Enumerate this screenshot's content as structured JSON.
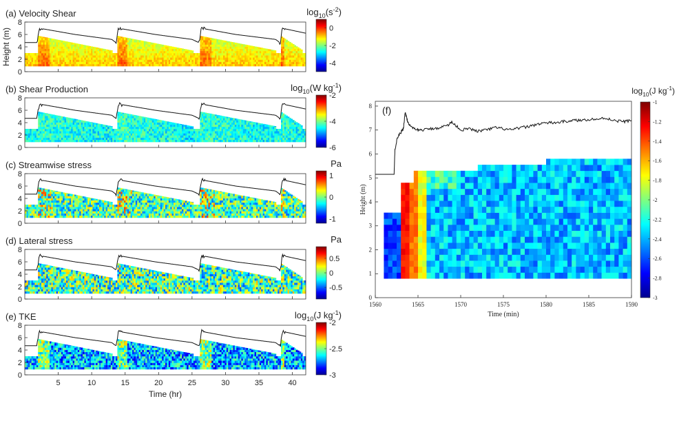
{
  "chart_data": [
    {
      "type": "heatmap",
      "panel_label": "(a) Velocity Shear",
      "colorbar_title_base": "log",
      "colorbar_title_sub": "10",
      "colorbar_title_rest": "(s",
      "colorbar_title_sup": "-2",
      "colorbar_title_end": ")",
      "colorbar_ticks": [
        0,
        -2,
        -4
      ],
      "clim": [
        -5,
        1
      ],
      "ylabel": "Height (m)",
      "yticks": [
        0,
        2,
        4,
        6,
        8
      ],
      "ylim": [
        0,
        8
      ],
      "xlim": [
        0,
        42
      ],
      "xticks": [
        5,
        10,
        15,
        20,
        25,
        30,
        35,
        40
      ],
      "show_xticklabels": false,
      "texture": "shear"
    },
    {
      "type": "heatmap",
      "panel_label": "(b) Shear Production",
      "colorbar_title_base": "log",
      "colorbar_title_sub": "10",
      "colorbar_title_rest": "(W kg",
      "colorbar_title_sup": "-1",
      "colorbar_title_end": ")",
      "colorbar_ticks": [
        -2,
        -4,
        -6
      ],
      "clim": [
        -6,
        -2
      ],
      "yticks": [
        0,
        2,
        4,
        6,
        8
      ],
      "ylim": [
        0,
        8
      ],
      "xlim": [
        0,
        42
      ],
      "xticks": [
        5,
        10,
        15,
        20,
        25,
        30,
        35,
        40
      ],
      "show_xticklabels": false,
      "texture": "production"
    },
    {
      "type": "heatmap",
      "panel_label": "(c) Streamwise stress",
      "colorbar_title_base": "Pa",
      "colorbar_ticks": [
        1,
        0,
        -1
      ],
      "clim": [
        -1.2,
        1.2
      ],
      "yticks": [
        0,
        2,
        4,
        6,
        8
      ],
      "ylim": [
        0,
        8
      ],
      "xlim": [
        0,
        42
      ],
      "xticks": [
        5,
        10,
        15,
        20,
        25,
        30,
        35,
        40
      ],
      "show_xticklabels": false,
      "texture": "streamwise"
    },
    {
      "type": "heatmap",
      "panel_label": "(d) Lateral stress",
      "colorbar_title_base": "Pa",
      "colorbar_ticks": [
        0.5,
        0,
        -0.5
      ],
      "clim": [
        -0.9,
        0.9
      ],
      "yticks": [
        0,
        2,
        4,
        6,
        8
      ],
      "ylim": [
        0,
        8
      ],
      "xlim": [
        0,
        42
      ],
      "xticks": [
        5,
        10,
        15,
        20,
        25,
        30,
        35,
        40
      ],
      "show_xticklabels": false,
      "texture": "lateral"
    },
    {
      "type": "heatmap",
      "panel_label": "(e) TKE",
      "colorbar_title_base": "log",
      "colorbar_title_sub": "10",
      "colorbar_title_rest": "(J kg",
      "colorbar_title_sup": "-1",
      "colorbar_title_end": ")",
      "colorbar_ticks": [
        -2,
        -2.5,
        -3
      ],
      "clim": [
        -3,
        -2
      ],
      "yticks": [
        0,
        2,
        4,
        6,
        8
      ],
      "ylim": [
        0,
        8
      ],
      "xlim": [
        0,
        42
      ],
      "xticks": [
        5,
        10,
        15,
        20,
        25,
        30,
        35,
        40
      ],
      "show_xticklabels": true,
      "xlabel": "Time (hr)",
      "texture": "tke"
    },
    {
      "type": "heatmap",
      "panel_label": "(f)",
      "colorbar_title_base": "log",
      "colorbar_title_sub": "10",
      "colorbar_title_rest": "(J kg",
      "colorbar_title_sup": "-1",
      "colorbar_title_end": ")",
      "colorbar_ticks": [
        -1,
        -1.2,
        -1.4,
        -1.6,
        -1.8,
        -2,
        -2.2,
        -2.4,
        -2.6,
        -2.8,
        -3
      ],
      "clim": [
        -3,
        -1
      ],
      "xlabel": "Time (min)",
      "ylabel": "Height (m)",
      "xlim": [
        1560,
        1590
      ],
      "xticks": [
        1560,
        1565,
        1570,
        1575,
        1580,
        1585,
        1590
      ],
      "ylim": [
        0,
        8.2
      ],
      "yticks": [
        0,
        1,
        2,
        3,
        4,
        5,
        6,
        7,
        8
      ],
      "water_level": {
        "x": [
          1560,
          1562.2,
          1562.3,
          1562.6,
          1563.0,
          1563.3,
          1563.5,
          1563.8,
          1564.2,
          1564.8,
          1565.5,
          1566.5,
          1567.5,
          1568.5,
          1569.0,
          1570.0,
          1571.0,
          1572.0,
          1573.0,
          1574.0,
          1575.0,
          1576.0,
          1577.0,
          1578.0,
          1579.0,
          1580.0,
          1581.0,
          1582.0,
          1583.0,
          1584.0,
          1585.0,
          1586.0,
          1587.0,
          1588.0,
          1589.0,
          1590.0
        ],
        "y": [
          5.15,
          5.15,
          6.2,
          6.7,
          6.9,
          7.1,
          7.75,
          7.35,
          7.1,
          7.0,
          7.0,
          7.05,
          7.1,
          7.2,
          7.35,
          7.0,
          7.05,
          6.95,
          7.0,
          7.1,
          7.05,
          7.0,
          7.1,
          7.15,
          7.25,
          7.3,
          7.3,
          7.35,
          7.4,
          7.4,
          7.45,
          7.45,
          7.5,
          7.4,
          7.35,
          7.4
        ]
      }
    }
  ],
  "left_water_level": {
    "description_values": [
      4.7,
      4.7,
      7.0,
      6.0,
      5.2,
      4.7,
      4.7,
      7.0,
      6.0,
      5.2,
      4.7,
      4.7,
      7.0,
      6.0,
      5.2,
      4.7,
      4.7,
      7.0,
      6.2
    ],
    "x": [
      0,
      1.8,
      2.2,
      7.5,
      13.0,
      13.6,
      13.7,
      14.0,
      19.5,
      25.0,
      26.0,
      26.1,
      26.4,
      31.5,
      37.5,
      38.1,
      38.2,
      38.5,
      42.0
    ]
  }
}
